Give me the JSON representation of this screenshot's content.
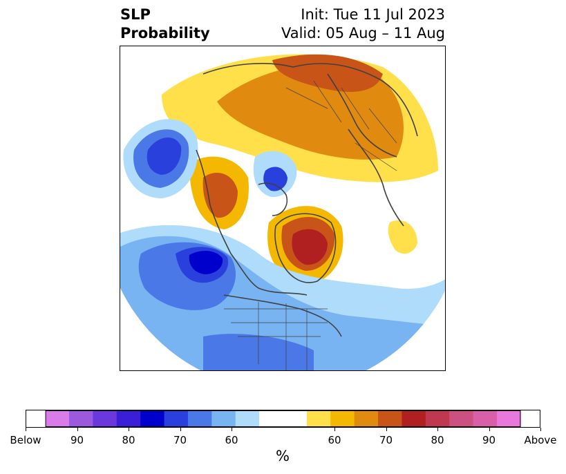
{
  "title": {
    "left_line1": "SLP",
    "left_line2": "Probability",
    "right_line1": "Init: Tue 11 Jul 2023",
    "right_line2": "Valid: 05 Aug – 11 Aug"
  },
  "chart_data": {
    "type": "heatmap",
    "description_type": "polar-stereographic probability map",
    "colorbar": {
      "unit": "%",
      "segments": [
        {
          "color": "#d97be8"
        },
        {
          "color": "#9b59e0"
        },
        {
          "color": "#6a38dc"
        },
        {
          "color": "#3a1ed8"
        },
        {
          "color": "#0000cc"
        },
        {
          "color": "#2a40dc"
        },
        {
          "color": "#4a78e6"
        },
        {
          "color": "#78b4f2"
        },
        {
          "color": "#aedcfa"
        },
        {
          "color": "#ffffff"
        },
        {
          "color": "#ffffff"
        },
        {
          "color": "#ffe04a"
        },
        {
          "color": "#f4b800"
        },
        {
          "color": "#e08a10"
        },
        {
          "color": "#c85418"
        },
        {
          "color": "#b02020"
        },
        {
          "color": "#c03850"
        },
        {
          "color": "#cc5080"
        },
        {
          "color": "#d860a8"
        },
        {
          "color": "#e878dc"
        }
      ],
      "tick_labels": [
        "Below",
        "90",
        "80",
        "70",
        "60",
        "60",
        "70",
        "80",
        "90",
        "Above"
      ]
    }
  }
}
